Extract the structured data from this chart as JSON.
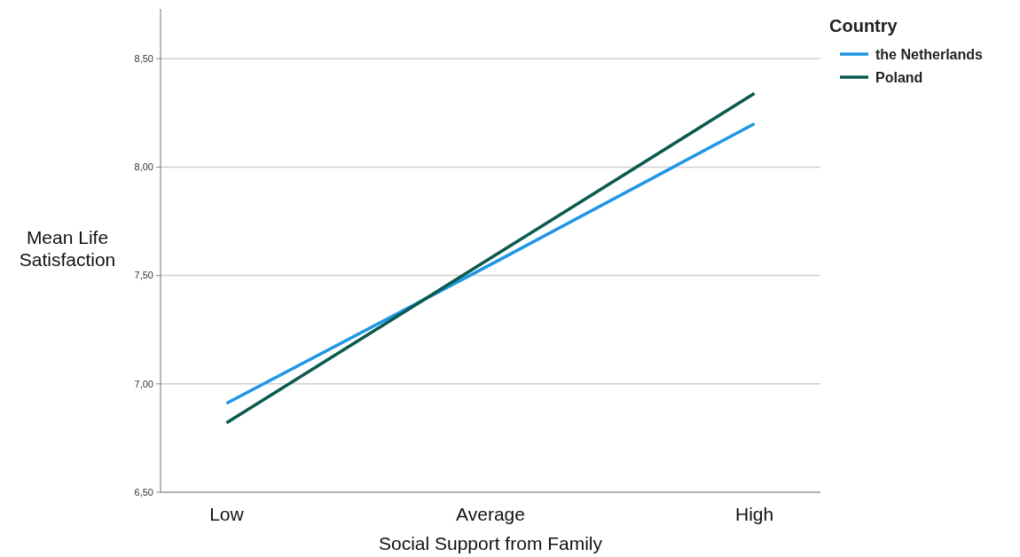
{
  "chart_data": {
    "type": "line",
    "xlabel": "Social Support from Family",
    "ylabel": "Mean Life Satisfaction",
    "legend_title": "Country",
    "categories": [
      "Low",
      "Average",
      "High"
    ],
    "series": [
      {
        "name": "the Netherlands",
        "color": "#1e96e6",
        "values": [
          6.91,
          7.55,
          8.2
        ]
      },
      {
        "name": "Poland",
        "color": "#0b5a4f",
        "values": [
          6.82,
          7.58,
          8.34
        ]
      }
    ],
    "ylim": [
      6.5,
      8.73
    ],
    "yticks": [
      {
        "value": 6.5,
        "label": "6,50"
      },
      {
        "value": 7,
        "label": "7,00"
      },
      {
        "value": 7.5,
        "label": "7,50"
      },
      {
        "value": 8,
        "label": "8,00"
      },
      {
        "value": 8.5,
        "label": "8,50"
      }
    ],
    "grid": "y",
    "legend": "top right",
    "marker": "none",
    "line_style": "solid"
  }
}
